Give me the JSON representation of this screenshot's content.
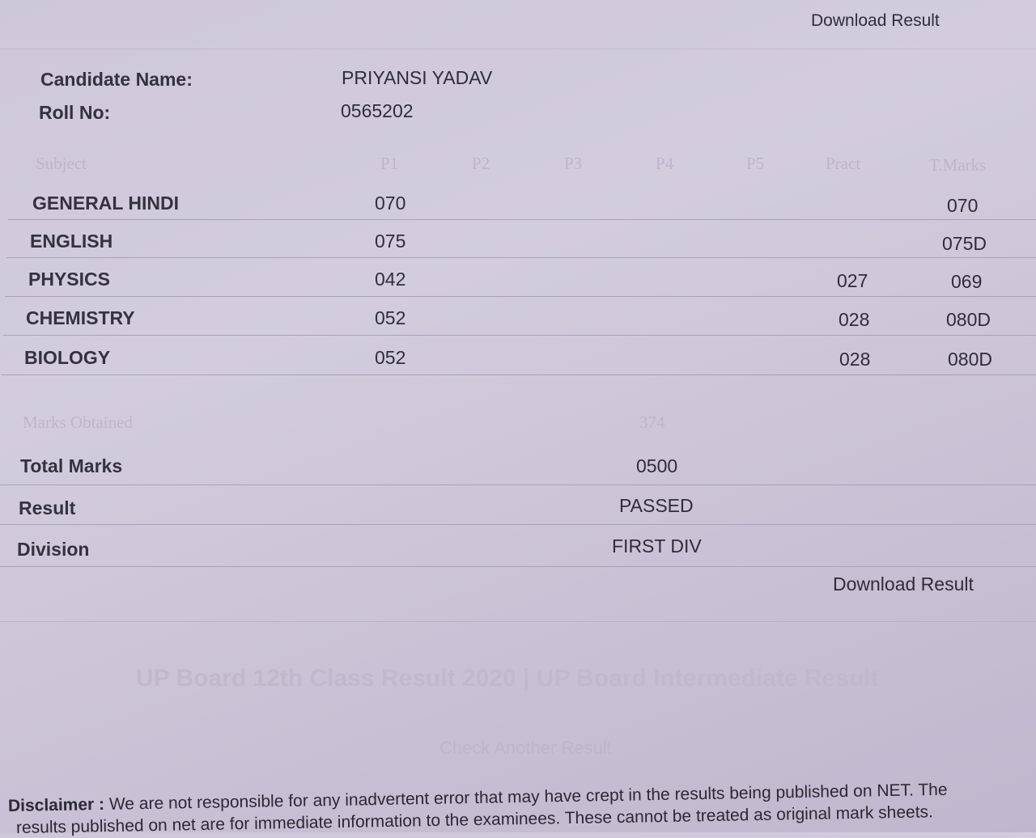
{
  "download_result_top": "Download Result",
  "candidate": {
    "name_label": "Candidate Name:",
    "name": "PRIYANSI YADAV",
    "roll_label": "Roll No:",
    "roll": "0565202"
  },
  "table": {
    "headers": [
      "Subject",
      "P1",
      "P2",
      "P3",
      "P4",
      "P5",
      "Pract",
      "T.Marks"
    ],
    "rows": [
      {
        "subject": "GENERAL HINDI",
        "p1": "070",
        "pract": "",
        "total": "070"
      },
      {
        "subject": "ENGLISH",
        "p1": "075",
        "pract": "",
        "total": "075D"
      },
      {
        "subject": "PHYSICS",
        "p1": "042",
        "pract": "027",
        "total": "069"
      },
      {
        "subject": "CHEMISTRY",
        "p1": "052",
        "pract": "028",
        "total": "080D"
      },
      {
        "subject": "BIOLOGY",
        "p1": "052",
        "pract": "028",
        "total": "080D"
      }
    ]
  },
  "summary": {
    "marks_obtained_label": "Marks Obtained",
    "marks_obtained": "374",
    "total_label": "Total Marks",
    "total": "0500",
    "result_label": "Result",
    "result": "PASSED",
    "division_label": "Division",
    "division": "FIRST DIV"
  },
  "download_result_bottom": "Download Result",
  "heading": "UP Board 12th Class Result 2020 | UP Board Intermediate Result",
  "check_another": "Check Another Result",
  "disclaimer": {
    "label": "Disclaimer :",
    "line1": " We are not responsible for any inadvertent error that may have crept in the results being published on NET. The",
    "line2": "results published on net are for immediate information to the examinees. These cannot be treated as original mark sheets."
  }
}
